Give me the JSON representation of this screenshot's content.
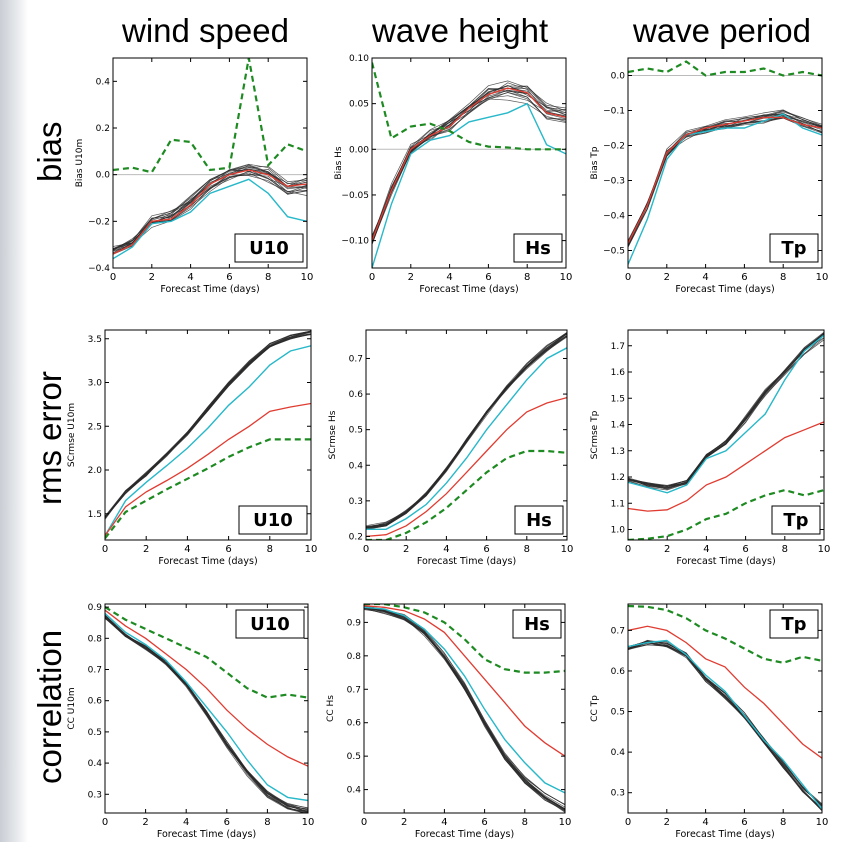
{
  "column_titles": [
    "wind speed",
    "wave height",
    "wave period"
  ],
  "row_titles": [
    "bias",
    "rms error",
    "correlation"
  ],
  "colors": {
    "ensemble": "#2a2a2a",
    "red": "#e03c31",
    "cyan": "#27b8c9",
    "green": "#1e8a22",
    "zero": "#bbbbbb"
  },
  "chart_data": [
    {
      "type": "line",
      "panel": "bias-wind",
      "badge": "U10",
      "xlabel": "Forecast Time (days)",
      "ylabel": "Bias U10m",
      "xlim": [
        0,
        10
      ],
      "ylim": [
        -0.4,
        0.5
      ],
      "xticks": [
        0,
        2,
        4,
        6,
        8,
        10
      ],
      "yticks": [
        -0.4,
        -0.2,
        0.0,
        0.2,
        0.4
      ],
      "ytick_labels": [
        "−0.4",
        "−0.2",
        "0.0",
        "0.2",
        "0.4"
      ],
      "zero_line": true,
      "x": [
        0,
        1,
        2,
        3,
        4,
        5,
        6,
        7,
        8,
        9,
        10
      ],
      "ensemble_mean": [
        -0.33,
        -0.29,
        -0.2,
        -0.18,
        -0.12,
        -0.04,
        0.0,
        0.02,
        0.0,
        -0.06,
        -0.05
      ],
      "ensemble_spread": 0.03,
      "red": [
        -0.34,
        -0.3,
        -0.2,
        -0.19,
        -0.13,
        -0.04,
        0.0,
        0.02,
        0.0,
        -0.05,
        -0.04
      ],
      "cyan": [
        -0.36,
        -0.31,
        -0.21,
        -0.2,
        -0.16,
        -0.08,
        -0.05,
        -0.02,
        -0.08,
        -0.18,
        -0.2
      ],
      "green": [
        0.02,
        0.03,
        0.01,
        0.15,
        0.14,
        0.02,
        0.03,
        0.5,
        0.04,
        0.13,
        0.1
      ]
    },
    {
      "type": "line",
      "panel": "bias-height",
      "badge": "Hs",
      "xlabel": "Forecast Time (days)",
      "ylabel": "Bias Hs",
      "xlim": [
        0,
        10
      ],
      "ylim": [
        -0.13,
        0.1
      ],
      "xticks": [
        0,
        2,
        4,
        6,
        8,
        10
      ],
      "yticks": [
        -0.1,
        -0.05,
        0.0,
        0.05,
        0.1
      ],
      "ytick_labels": [
        "−0.10",
        "−0.05",
        "0.00",
        "0.05",
        "0.10"
      ],
      "zero_line": true,
      "x": [
        0,
        1,
        2,
        3,
        4,
        5,
        6,
        7,
        8,
        9,
        10
      ],
      "ensemble_mean": [
        -0.1,
        -0.045,
        0.0,
        0.015,
        0.025,
        0.045,
        0.06,
        0.065,
        0.06,
        0.04,
        0.035
      ],
      "ensemble_spread": 0.009,
      "red": [
        -0.1,
        -0.045,
        0.0,
        0.015,
        0.025,
        0.045,
        0.06,
        0.067,
        0.062,
        0.04,
        0.035
      ],
      "cyan": [
        -0.13,
        -0.06,
        -0.005,
        0.01,
        0.015,
        0.03,
        0.035,
        0.04,
        0.05,
        0.005,
        -0.005
      ],
      "green": [
        0.095,
        0.012,
        0.025,
        0.028,
        0.02,
        0.008,
        0.003,
        0.002,
        0.0,
        0.0,
        0.0
      ]
    },
    {
      "type": "line",
      "panel": "bias-period",
      "badge": "Tp",
      "xlabel": "Forecast Time (days)",
      "ylabel": "Bias Tp",
      "xlim": [
        0,
        10
      ],
      "ylim": [
        -0.55,
        0.05
      ],
      "xticks": [
        0,
        2,
        4,
        6,
        8,
        10
      ],
      "yticks": [
        -0.5,
        -0.4,
        -0.3,
        -0.2,
        -0.1,
        0.0
      ],
      "ytick_labels": [
        "−0.5",
        "−0.4",
        "−0.3",
        "−0.2",
        "−0.1",
        "0.0"
      ],
      "zero_line": true,
      "x": [
        0,
        1,
        2,
        3,
        4,
        5,
        6,
        7,
        8,
        9,
        10
      ],
      "ensemble_mean": [
        -0.48,
        -0.37,
        -0.22,
        -0.17,
        -0.15,
        -0.14,
        -0.13,
        -0.12,
        -0.11,
        -0.13,
        -0.15
      ],
      "ensemble_spread": 0.014,
      "red": [
        -0.48,
        -0.37,
        -0.22,
        -0.17,
        -0.15,
        -0.14,
        -0.13,
        -0.12,
        -0.12,
        -0.14,
        -0.15
      ],
      "cyan": [
        -0.54,
        -0.41,
        -0.24,
        -0.17,
        -0.16,
        -0.15,
        -0.15,
        -0.13,
        -0.11,
        -0.15,
        -0.17
      ],
      "green": [
        0.01,
        0.02,
        0.01,
        0.04,
        0.0,
        0.01,
        0.01,
        0.02,
        0.0,
        0.01,
        0.0
      ]
    },
    {
      "type": "line",
      "panel": "rms-wind",
      "badge": "U10",
      "xlabel": "Forecast Time (days)",
      "ylabel": "SCrmse U10m",
      "xlim": [
        0,
        10
      ],
      "ylim": [
        1.2,
        3.6
      ],
      "xticks": [
        0,
        2,
        4,
        6,
        8,
        10
      ],
      "yticks": [
        1.5,
        2.0,
        2.5,
        3.0,
        3.5
      ],
      "ytick_labels": [
        "1.5",
        "2.0",
        "2.5",
        "3.0",
        "3.5"
      ],
      "zero_line": false,
      "x": [
        0,
        1,
        2,
        3,
        4,
        5,
        6,
        7,
        8,
        9,
        10
      ],
      "ensemble_mean": [
        1.45,
        1.75,
        1.95,
        2.18,
        2.42,
        2.7,
        2.98,
        3.22,
        3.42,
        3.52,
        3.57
      ],
      "ensemble_spread": 0.03,
      "red": [
        1.25,
        1.58,
        1.75,
        1.88,
        2.02,
        2.18,
        2.35,
        2.5,
        2.67,
        2.72,
        2.76
      ],
      "cyan": [
        1.25,
        1.65,
        1.86,
        2.05,
        2.25,
        2.48,
        2.74,
        2.95,
        3.2,
        3.36,
        3.42
      ],
      "green": [
        1.22,
        1.52,
        1.65,
        1.78,
        1.9,
        2.02,
        2.15,
        2.26,
        2.35,
        2.35,
        2.35
      ]
    },
    {
      "type": "line",
      "panel": "rms-height",
      "badge": "Hs",
      "xlabel": "Forecast Time (days)",
      "ylabel": "SCrmse Hs",
      "xlim": [
        0,
        10
      ],
      "ylim": [
        0.19,
        0.78
      ],
      "xticks": [
        0,
        2,
        4,
        6,
        8,
        10
      ],
      "yticks": [
        0.2,
        0.3,
        0.4,
        0.5,
        0.6,
        0.7
      ],
      "ytick_labels": [
        "0.2",
        "0.3",
        "0.4",
        "0.5",
        "0.6",
        "0.7"
      ],
      "zero_line": false,
      "x": [
        0,
        1,
        2,
        3,
        4,
        5,
        6,
        7,
        8,
        9,
        10
      ],
      "ensemble_mean": [
        0.225,
        0.235,
        0.27,
        0.32,
        0.39,
        0.47,
        0.55,
        0.62,
        0.68,
        0.73,
        0.77
      ],
      "ensemble_spread": 0.008,
      "red": [
        0.2,
        0.205,
        0.23,
        0.27,
        0.32,
        0.38,
        0.44,
        0.5,
        0.55,
        0.575,
        0.59
      ],
      "cyan": [
        0.22,
        0.22,
        0.25,
        0.29,
        0.35,
        0.42,
        0.5,
        0.57,
        0.64,
        0.7,
        0.73
      ],
      "green": [
        0.19,
        0.19,
        0.21,
        0.24,
        0.28,
        0.33,
        0.38,
        0.42,
        0.44,
        0.44,
        0.435
      ]
    },
    {
      "type": "line",
      "panel": "rms-period",
      "badge": "Tp",
      "xlabel": "Forecast Time (days)",
      "ylabel": "SCrmse Tp",
      "xlim": [
        0,
        10
      ],
      "ylim": [
        0.96,
        1.76
      ],
      "xticks": [
        0,
        2,
        4,
        6,
        8,
        10
      ],
      "yticks": [
        1.0,
        1.1,
        1.2,
        1.3,
        1.4,
        1.5,
        1.6,
        1.7
      ],
      "ytick_labels": [
        "1.0",
        "1.1",
        "1.2",
        "1.3",
        "1.4",
        "1.5",
        "1.6",
        "1.7"
      ],
      "zero_line": false,
      "x": [
        0,
        1,
        2,
        3,
        4,
        5,
        6,
        7,
        8,
        9,
        10
      ],
      "ensemble_mean": [
        1.19,
        1.17,
        1.16,
        1.18,
        1.28,
        1.33,
        1.42,
        1.52,
        1.6,
        1.68,
        1.74
      ],
      "ensemble_spread": 0.012,
      "red": [
        1.08,
        1.07,
        1.075,
        1.11,
        1.17,
        1.2,
        1.25,
        1.3,
        1.35,
        1.38,
        1.41
      ],
      "cyan": [
        1.18,
        1.16,
        1.14,
        1.17,
        1.27,
        1.3,
        1.37,
        1.44,
        1.57,
        1.68,
        1.74
      ],
      "green": [
        0.96,
        0.965,
        0.975,
        1.0,
        1.04,
        1.06,
        1.1,
        1.13,
        1.15,
        1.13,
        1.15
      ]
    },
    {
      "type": "line",
      "panel": "corr-wind",
      "badge": "U10",
      "xlabel": "Forecast Time (days)",
      "ylabel": "CC U10m",
      "xlim": [
        0,
        10
      ],
      "ylim": [
        0.24,
        0.91
      ],
      "xticks": [
        0,
        2,
        4,
        6,
        8,
        10
      ],
      "yticks": [
        0.3,
        0.4,
        0.5,
        0.6,
        0.7,
        0.8,
        0.9
      ],
      "ytick_labels": [
        "0.3",
        "0.4",
        "0.5",
        "0.6",
        "0.7",
        "0.8",
        "0.9"
      ],
      "zero_line": false,
      "x": [
        0,
        1,
        2,
        3,
        4,
        5,
        6,
        7,
        8,
        9,
        10
      ],
      "ensemble_mean": [
        0.87,
        0.81,
        0.77,
        0.72,
        0.65,
        0.56,
        0.46,
        0.37,
        0.3,
        0.26,
        0.245
      ],
      "ensemble_spread": 0.01,
      "red": [
        0.89,
        0.84,
        0.8,
        0.75,
        0.7,
        0.64,
        0.57,
        0.51,
        0.46,
        0.42,
        0.39
      ],
      "cyan": [
        0.88,
        0.82,
        0.78,
        0.73,
        0.66,
        0.58,
        0.5,
        0.41,
        0.33,
        0.29,
        0.28
      ],
      "green": [
        0.9,
        0.86,
        0.83,
        0.8,
        0.77,
        0.74,
        0.69,
        0.64,
        0.61,
        0.62,
        0.61
      ]
    },
    {
      "type": "line",
      "panel": "corr-height",
      "badge": "Hs",
      "xlabel": "Forecast Time (days)",
      "ylabel": "CC Hs",
      "xlim": [
        0,
        10
      ],
      "ylim": [
        0.33,
        0.955
      ],
      "xticks": [
        0,
        2,
        4,
        6,
        8,
        10
      ],
      "yticks": [
        0.4,
        0.5,
        0.6,
        0.7,
        0.8,
        0.9
      ],
      "ytick_labels": [
        "0.4",
        "0.5",
        "0.6",
        "0.7",
        "0.8",
        "0.9"
      ],
      "zero_line": false,
      "x": [
        0,
        1,
        2,
        3,
        4,
        5,
        6,
        7,
        8,
        9,
        10
      ],
      "ensemble_mean": [
        0.945,
        0.935,
        0.915,
        0.87,
        0.8,
        0.71,
        0.6,
        0.5,
        0.43,
        0.38,
        0.345
      ],
      "ensemble_spread": 0.01,
      "red": [
        0.95,
        0.945,
        0.935,
        0.91,
        0.87,
        0.8,
        0.73,
        0.66,
        0.59,
        0.54,
        0.5
      ],
      "cyan": [
        0.945,
        0.94,
        0.92,
        0.88,
        0.82,
        0.74,
        0.64,
        0.55,
        0.48,
        0.42,
        0.39
      ],
      "green": [
        0.955,
        0.955,
        0.945,
        0.93,
        0.9,
        0.85,
        0.79,
        0.76,
        0.75,
        0.75,
        0.755
      ]
    },
    {
      "type": "line",
      "panel": "corr-period",
      "badge": "Tp",
      "xlabel": "Forecast Time (days)",
      "ylabel": "CC Tp",
      "xlim": [
        0,
        10
      ],
      "ylim": [
        0.25,
        0.765
      ],
      "xticks": [
        0,
        2,
        4,
        6,
        8,
        10
      ],
      "yticks": [
        0.3,
        0.4,
        0.5,
        0.6,
        0.7
      ],
      "ytick_labels": [
        "0.3",
        "0.4",
        "0.5",
        "0.6",
        "0.7"
      ],
      "zero_line": false,
      "x": [
        0,
        1,
        2,
        3,
        4,
        5,
        6,
        7,
        8,
        9,
        10
      ],
      "ensemble_mean": [
        0.655,
        0.67,
        0.665,
        0.64,
        0.58,
        0.54,
        0.49,
        0.43,
        0.37,
        0.31,
        0.265
      ],
      "ensemble_spread": 0.008,
      "red": [
        0.7,
        0.71,
        0.7,
        0.67,
        0.63,
        0.61,
        0.56,
        0.52,
        0.47,
        0.42,
        0.385
      ],
      "cyan": [
        0.66,
        0.67,
        0.675,
        0.64,
        0.59,
        0.55,
        0.49,
        0.43,
        0.38,
        0.32,
        0.26
      ],
      "green": [
        0.76,
        0.758,
        0.75,
        0.73,
        0.7,
        0.68,
        0.655,
        0.63,
        0.62,
        0.635,
        0.625
      ]
    }
  ]
}
